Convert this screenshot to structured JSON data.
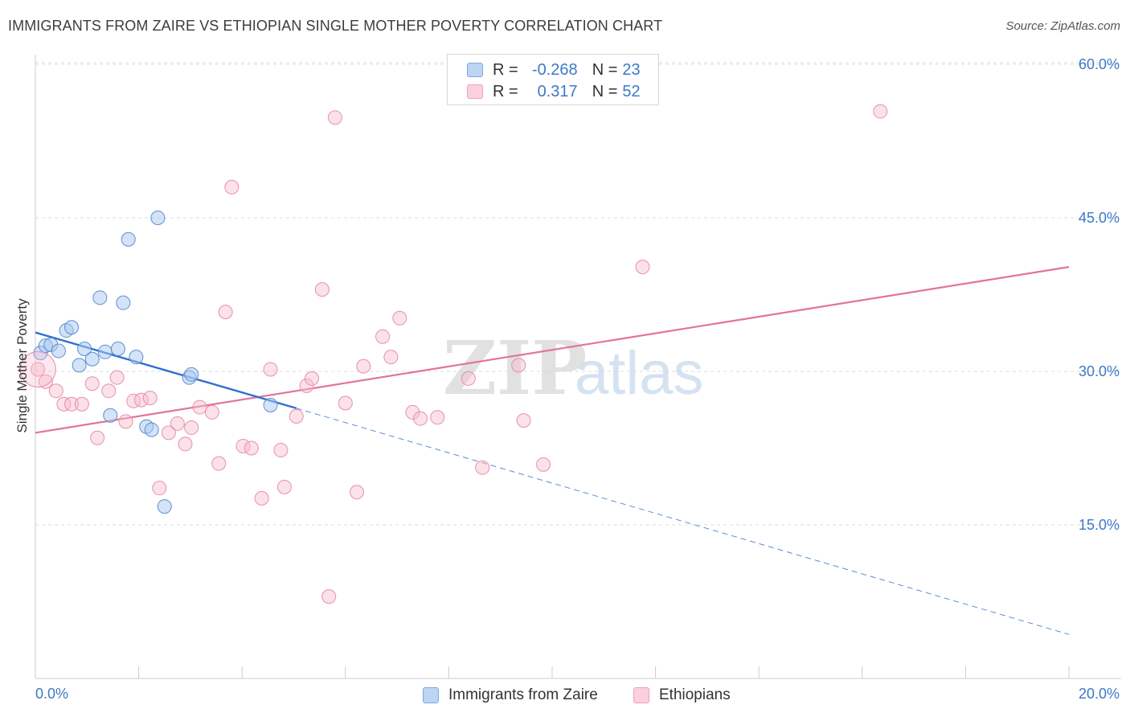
{
  "title": "IMMIGRANTS FROM ZAIRE VS ETHIOPIAN SINGLE MOTHER POVERTY CORRELATION CHART",
  "source": "Source: ZipAtlas.com",
  "watermark": {
    "zip": "ZIP",
    "atlas": "atlas"
  },
  "legend": {
    "rows": [
      {
        "r_label": "R =",
        "r_value": "-0.268",
        "n_label": "N =",
        "n_value": "23"
      },
      {
        "r_label": "R =",
        "r_value": "0.317",
        "n_label": "N =",
        "n_value": "52"
      }
    ]
  },
  "bottom_legend": {
    "series1": "Immigrants from Zaire",
    "series2": "Ethiopians"
  },
  "colors": {
    "blue_fill": "#a9c8ef",
    "blue_stroke": "#5b8fd1",
    "blue_line": "#2f6fd0",
    "pink_fill": "#f7bccd",
    "pink_stroke": "#e890ab",
    "pink_line": "#e2739a",
    "tick_label": "#3d79c6",
    "grid": "#dddddd"
  },
  "chart_data": {
    "type": "scatter",
    "title": "IMMIGRANTS FROM ZAIRE VS ETHIOPIAN SINGLE MOTHER POVERTY CORRELATION CHART",
    "xlabel": "",
    "ylabel": "Single Mother Poverty",
    "xlim": [
      0,
      0.2
    ],
    "ylim": [
      0,
      0.6
    ],
    "x_tick_labels": [
      "0.0%",
      "20.0%"
    ],
    "y_ticks": [
      0.15,
      0.3,
      0.45,
      0.6
    ],
    "y_tick_labels": [
      "15.0%",
      "30.0%",
      "45.0%",
      "60.0%"
    ],
    "grid": true,
    "series": [
      {
        "name": "Immigrants from Zaire",
        "color": "#a9c8ef",
        "points": [
          [
            0.001,
            0.318
          ],
          [
            0.002,
            0.325
          ],
          [
            0.003,
            0.326
          ],
          [
            0.0045,
            0.32
          ],
          [
            0.006,
            0.34
          ],
          [
            0.007,
            0.343
          ],
          [
            0.0085,
            0.306
          ],
          [
            0.0095,
            0.322
          ],
          [
            0.011,
            0.312
          ],
          [
            0.0125,
            0.372
          ],
          [
            0.0135,
            0.319
          ],
          [
            0.0145,
            0.257
          ],
          [
            0.016,
            0.322
          ],
          [
            0.017,
            0.367
          ],
          [
            0.018,
            0.429
          ],
          [
            0.0195,
            0.314
          ],
          [
            0.0215,
            0.246
          ],
          [
            0.0225,
            0.243
          ],
          [
            0.0237,
            0.45
          ],
          [
            0.025,
            0.168
          ],
          [
            0.0298,
            0.294
          ],
          [
            0.0302,
            0.297
          ],
          [
            0.0455,
            0.267
          ]
        ],
        "trend_solid": [
          [
            0.0,
            0.338
          ],
          [
            0.0505,
            0.264
          ]
        ],
        "trend_dashed": [
          [
            0.0505,
            0.264
          ],
          [
            0.2,
            0.043
          ]
        ]
      },
      {
        "name": "Ethiopians",
        "color": "#f7bccd",
        "points": [
          [
            0.0005,
            0.302
          ],
          [
            0.002,
            0.29
          ],
          [
            0.004,
            0.281
          ],
          [
            0.0055,
            0.268
          ],
          [
            0.007,
            0.268
          ],
          [
            0.009,
            0.268
          ],
          [
            0.011,
            0.288
          ],
          [
            0.012,
            0.235
          ],
          [
            0.0142,
            0.281
          ],
          [
            0.0158,
            0.294
          ],
          [
            0.0175,
            0.251
          ],
          [
            0.019,
            0.271
          ],
          [
            0.0205,
            0.272
          ],
          [
            0.0222,
            0.274
          ],
          [
            0.024,
            0.186
          ],
          [
            0.0258,
            0.24
          ],
          [
            0.0275,
            0.249
          ],
          [
            0.029,
            0.229
          ],
          [
            0.0302,
            0.245
          ],
          [
            0.0318,
            0.265
          ],
          [
            0.0342,
            0.26
          ],
          [
            0.0355,
            0.21
          ],
          [
            0.0368,
            0.358
          ],
          [
            0.038,
            0.48
          ],
          [
            0.0402,
            0.227
          ],
          [
            0.0418,
            0.225
          ],
          [
            0.0438,
            0.176
          ],
          [
            0.0455,
            0.302
          ],
          [
            0.0475,
            0.223
          ],
          [
            0.0482,
            0.187
          ],
          [
            0.0505,
            0.256
          ],
          [
            0.0525,
            0.286
          ],
          [
            0.0535,
            0.293
          ],
          [
            0.0555,
            0.38
          ],
          [
            0.0568,
            0.08
          ],
          [
            0.058,
            0.548
          ],
          [
            0.06,
            0.269
          ],
          [
            0.0622,
            0.182
          ],
          [
            0.0635,
            0.305
          ],
          [
            0.0672,
            0.334
          ],
          [
            0.0688,
            0.314
          ],
          [
            0.0705,
            0.352
          ],
          [
            0.073,
            0.26
          ],
          [
            0.0745,
            0.254
          ],
          [
            0.0778,
            0.255
          ],
          [
            0.0838,
            0.293
          ],
          [
            0.0865,
            0.206
          ],
          [
            0.0935,
            0.306
          ],
          [
            0.0945,
            0.252
          ],
          [
            0.0983,
            0.209
          ],
          [
            0.1175,
            0.402
          ],
          [
            0.1635,
            0.554
          ]
        ],
        "trend_solid": [
          [
            0.0,
            0.24
          ],
          [
            0.2,
            0.402
          ]
        ]
      }
    ]
  }
}
